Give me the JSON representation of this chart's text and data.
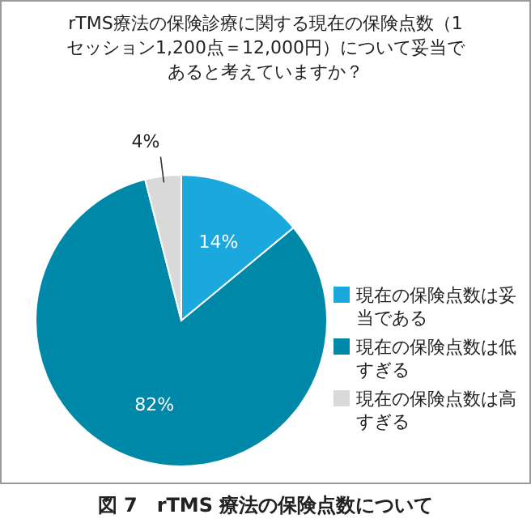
{
  "chart_data": {
    "type": "pie",
    "title": "rTMS療法の保険診療に関する現在の保険点数（1セッション1,200点＝12,000円）について妥当であると考えていますか？",
    "categories": [
      "現在の保険点数は妥当である",
      "現在の保険点数は低すぎる",
      "現在の保険点数は高すぎる"
    ],
    "values": [
      14,
      82,
      4
    ],
    "colors": [
      "#1ba8dd",
      "#0088a9",
      "#d9d9d9"
    ],
    "value_labels": [
      "14%",
      "82%",
      "4%"
    ],
    "legend": "right",
    "annotations": [
      "図 7　rTMS 療法の保険点数について"
    ]
  }
}
